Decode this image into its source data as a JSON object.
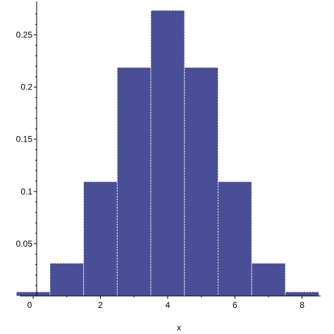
{
  "chart_data": {
    "type": "bar",
    "title": "",
    "xlabel": "x",
    "ylabel": "",
    "bar_color": "#4a4e96",
    "bins": [
      {
        "x": 0,
        "value": 0.0039
      },
      {
        "x": 1,
        "value": 0.0313
      },
      {
        "x": 2,
        "value": 0.1094
      },
      {
        "x": 3,
        "value": 0.2188
      },
      {
        "x": 4,
        "value": 0.2734
      },
      {
        "x": 5,
        "value": 0.2188
      },
      {
        "x": 6,
        "value": 0.1094
      },
      {
        "x": 7,
        "value": 0.0313
      },
      {
        "x": 8,
        "value": 0.0039
      }
    ],
    "bin_width": 1,
    "xlim": [
      -0.4,
      8.55
    ],
    "ylim": [
      0,
      0.28
    ],
    "x_ticks": [
      {
        "value": 0,
        "label": "0"
      },
      {
        "value": 2,
        "label": "2"
      },
      {
        "value": 4,
        "label": "4"
      },
      {
        "value": 6,
        "label": "6"
      },
      {
        "value": 8,
        "label": "8"
      }
    ],
    "y_ticks": [
      {
        "value": 0.05,
        "label": "0.05"
      },
      {
        "value": 0.1,
        "label": "0.1"
      },
      {
        "value": 0.15,
        "label": "0.15"
      },
      {
        "value": 0.2,
        "label": "0.2"
      },
      {
        "value": 0.25,
        "label": "0.25"
      }
    ]
  }
}
